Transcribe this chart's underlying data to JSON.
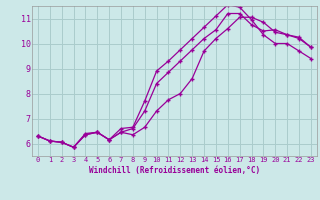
{
  "bg_color": "#cce8e8",
  "line_color": "#990099",
  "grid_color": "#aacccc",
  "xlabel": "Windchill (Refroidissement éolien,°C)",
  "ylim": [
    5.5,
    11.5
  ],
  "xlim": [
    -0.5,
    23.5
  ],
  "yticks": [
    6,
    7,
    8,
    9,
    10,
    11
  ],
  "xticks": [
    0,
    1,
    2,
    3,
    4,
    5,
    6,
    7,
    8,
    9,
    10,
    11,
    12,
    13,
    14,
    15,
    16,
    17,
    18,
    19,
    20,
    21,
    22,
    23
  ],
  "line1_x": [
    0,
    1,
    2,
    3,
    4,
    5,
    6,
    7,
    8,
    9,
    10,
    11,
    12,
    13,
    14,
    15,
    16,
    17,
    18,
    19,
    20,
    21,
    22,
    23
  ],
  "line1_y": [
    6.3,
    6.1,
    6.05,
    5.85,
    6.4,
    6.45,
    6.15,
    6.45,
    6.35,
    6.65,
    7.3,
    7.75,
    8.0,
    8.6,
    9.7,
    10.2,
    10.6,
    11.05,
    11.05,
    10.85,
    10.45,
    10.35,
    10.2,
    9.85
  ],
  "line2_x": [
    0,
    1,
    2,
    3,
    4,
    5,
    6,
    7,
    8,
    9,
    10,
    11,
    12,
    13,
    14,
    15,
    16,
    17,
    18,
    19,
    20,
    21,
    22,
    23
  ],
  "line2_y": [
    6.3,
    6.1,
    6.05,
    5.85,
    6.35,
    6.45,
    6.15,
    6.45,
    6.6,
    7.3,
    8.4,
    8.85,
    9.3,
    9.75,
    10.2,
    10.55,
    11.2,
    11.2,
    10.75,
    10.5,
    10.55,
    10.35,
    10.25,
    9.85
  ],
  "line3_x": [
    0,
    1,
    2,
    3,
    4,
    5,
    6,
    7,
    8,
    9,
    10,
    11,
    12,
    13,
    14,
    15,
    16,
    17,
    18,
    19,
    20,
    21,
    22,
    23
  ],
  "line3_y": [
    6.3,
    6.1,
    6.05,
    5.85,
    6.35,
    6.45,
    6.15,
    6.6,
    6.65,
    7.7,
    8.9,
    9.3,
    9.75,
    10.2,
    10.65,
    11.1,
    11.55,
    11.45,
    10.95,
    10.35,
    10.0,
    10.0,
    9.7,
    9.4
  ]
}
